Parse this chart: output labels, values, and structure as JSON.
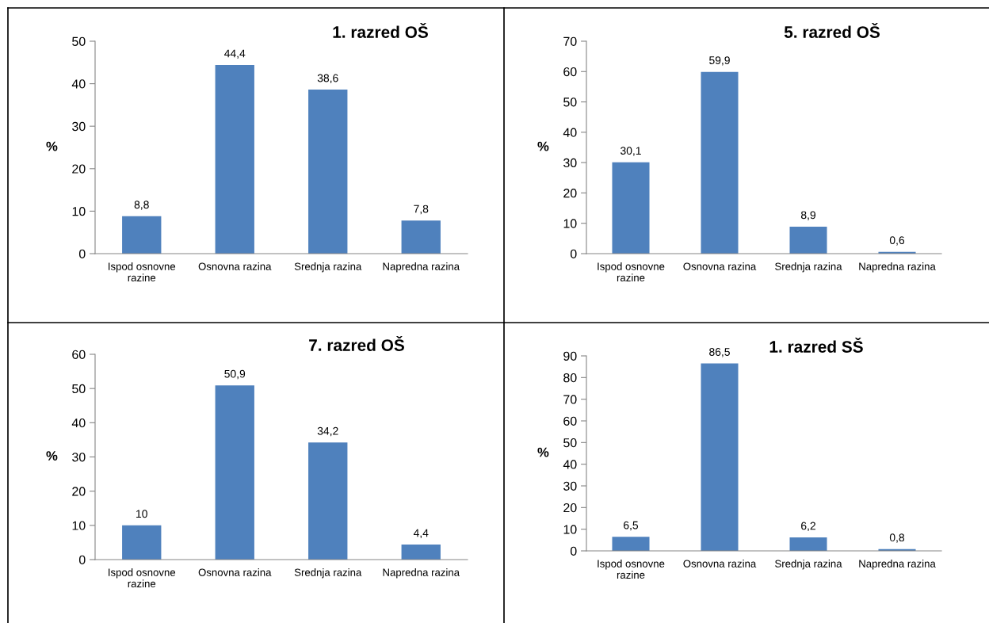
{
  "chart_data": [
    {
      "type": "bar",
      "title": "1. razred OŠ",
      "ylabel": "%",
      "categories": [
        "Ispod osnovne\nrazine",
        "Osnovna razina",
        "Srednja razina",
        "Napredna razina"
      ],
      "values": [
        8.8,
        44.4,
        38.6,
        7.8
      ],
      "value_labels": [
        "8,8",
        "44,4",
        "38,6",
        "7,8"
      ],
      "color": "#4f81bd",
      "ylim": [
        0,
        50
      ],
      "yticks": [
        0,
        10,
        20,
        30,
        40,
        50
      ],
      "grid": false,
      "legend": false
    },
    {
      "type": "bar",
      "title": "5. razred OŠ",
      "ylabel": "%",
      "categories": [
        "Ispod osnovne\nrazine",
        "Osnovna razina",
        "Srednja razina",
        "Napredna razina"
      ],
      "values": [
        30.1,
        59.9,
        8.9,
        0.6
      ],
      "value_labels": [
        "30,1",
        "59,9",
        "8,9",
        "0,6"
      ],
      "color": "#4f81bd",
      "ylim": [
        0,
        70
      ],
      "yticks": [
        0,
        10,
        20,
        30,
        40,
        50,
        60,
        70
      ],
      "grid": false,
      "legend": false
    },
    {
      "type": "bar",
      "title": "7. razred OŠ",
      "ylabel": "%",
      "categories": [
        "Ispod osnovne\nrazine",
        "Osnovna razina",
        "Srednja razina",
        "Napredna razina"
      ],
      "values": [
        10,
        50.9,
        34.2,
        4.4
      ],
      "value_labels": [
        "10",
        "50,9",
        "34,2",
        "4,4"
      ],
      "color": "#4f81bd",
      "ylim": [
        0,
        60
      ],
      "yticks": [
        0,
        10,
        20,
        30,
        40,
        50,
        60
      ],
      "grid": false,
      "legend": false
    },
    {
      "type": "bar",
      "title": "1. razred SŠ",
      "ylabel": "%",
      "categories": [
        "Ispod osnovne\nrazine",
        "Osnovna razina",
        "Srednja razina",
        "Napredna razina"
      ],
      "values": [
        6.5,
        86.5,
        6.2,
        0.8
      ],
      "value_labels": [
        "6,5",
        "86,5",
        "6,2",
        "0,8"
      ],
      "color": "#4f81bd",
      "ylim": [
        0,
        90
      ],
      "yticks": [
        0,
        10,
        20,
        30,
        40,
        50,
        60,
        70,
        80,
        90
      ],
      "grid": false,
      "legend": false
    }
  ]
}
